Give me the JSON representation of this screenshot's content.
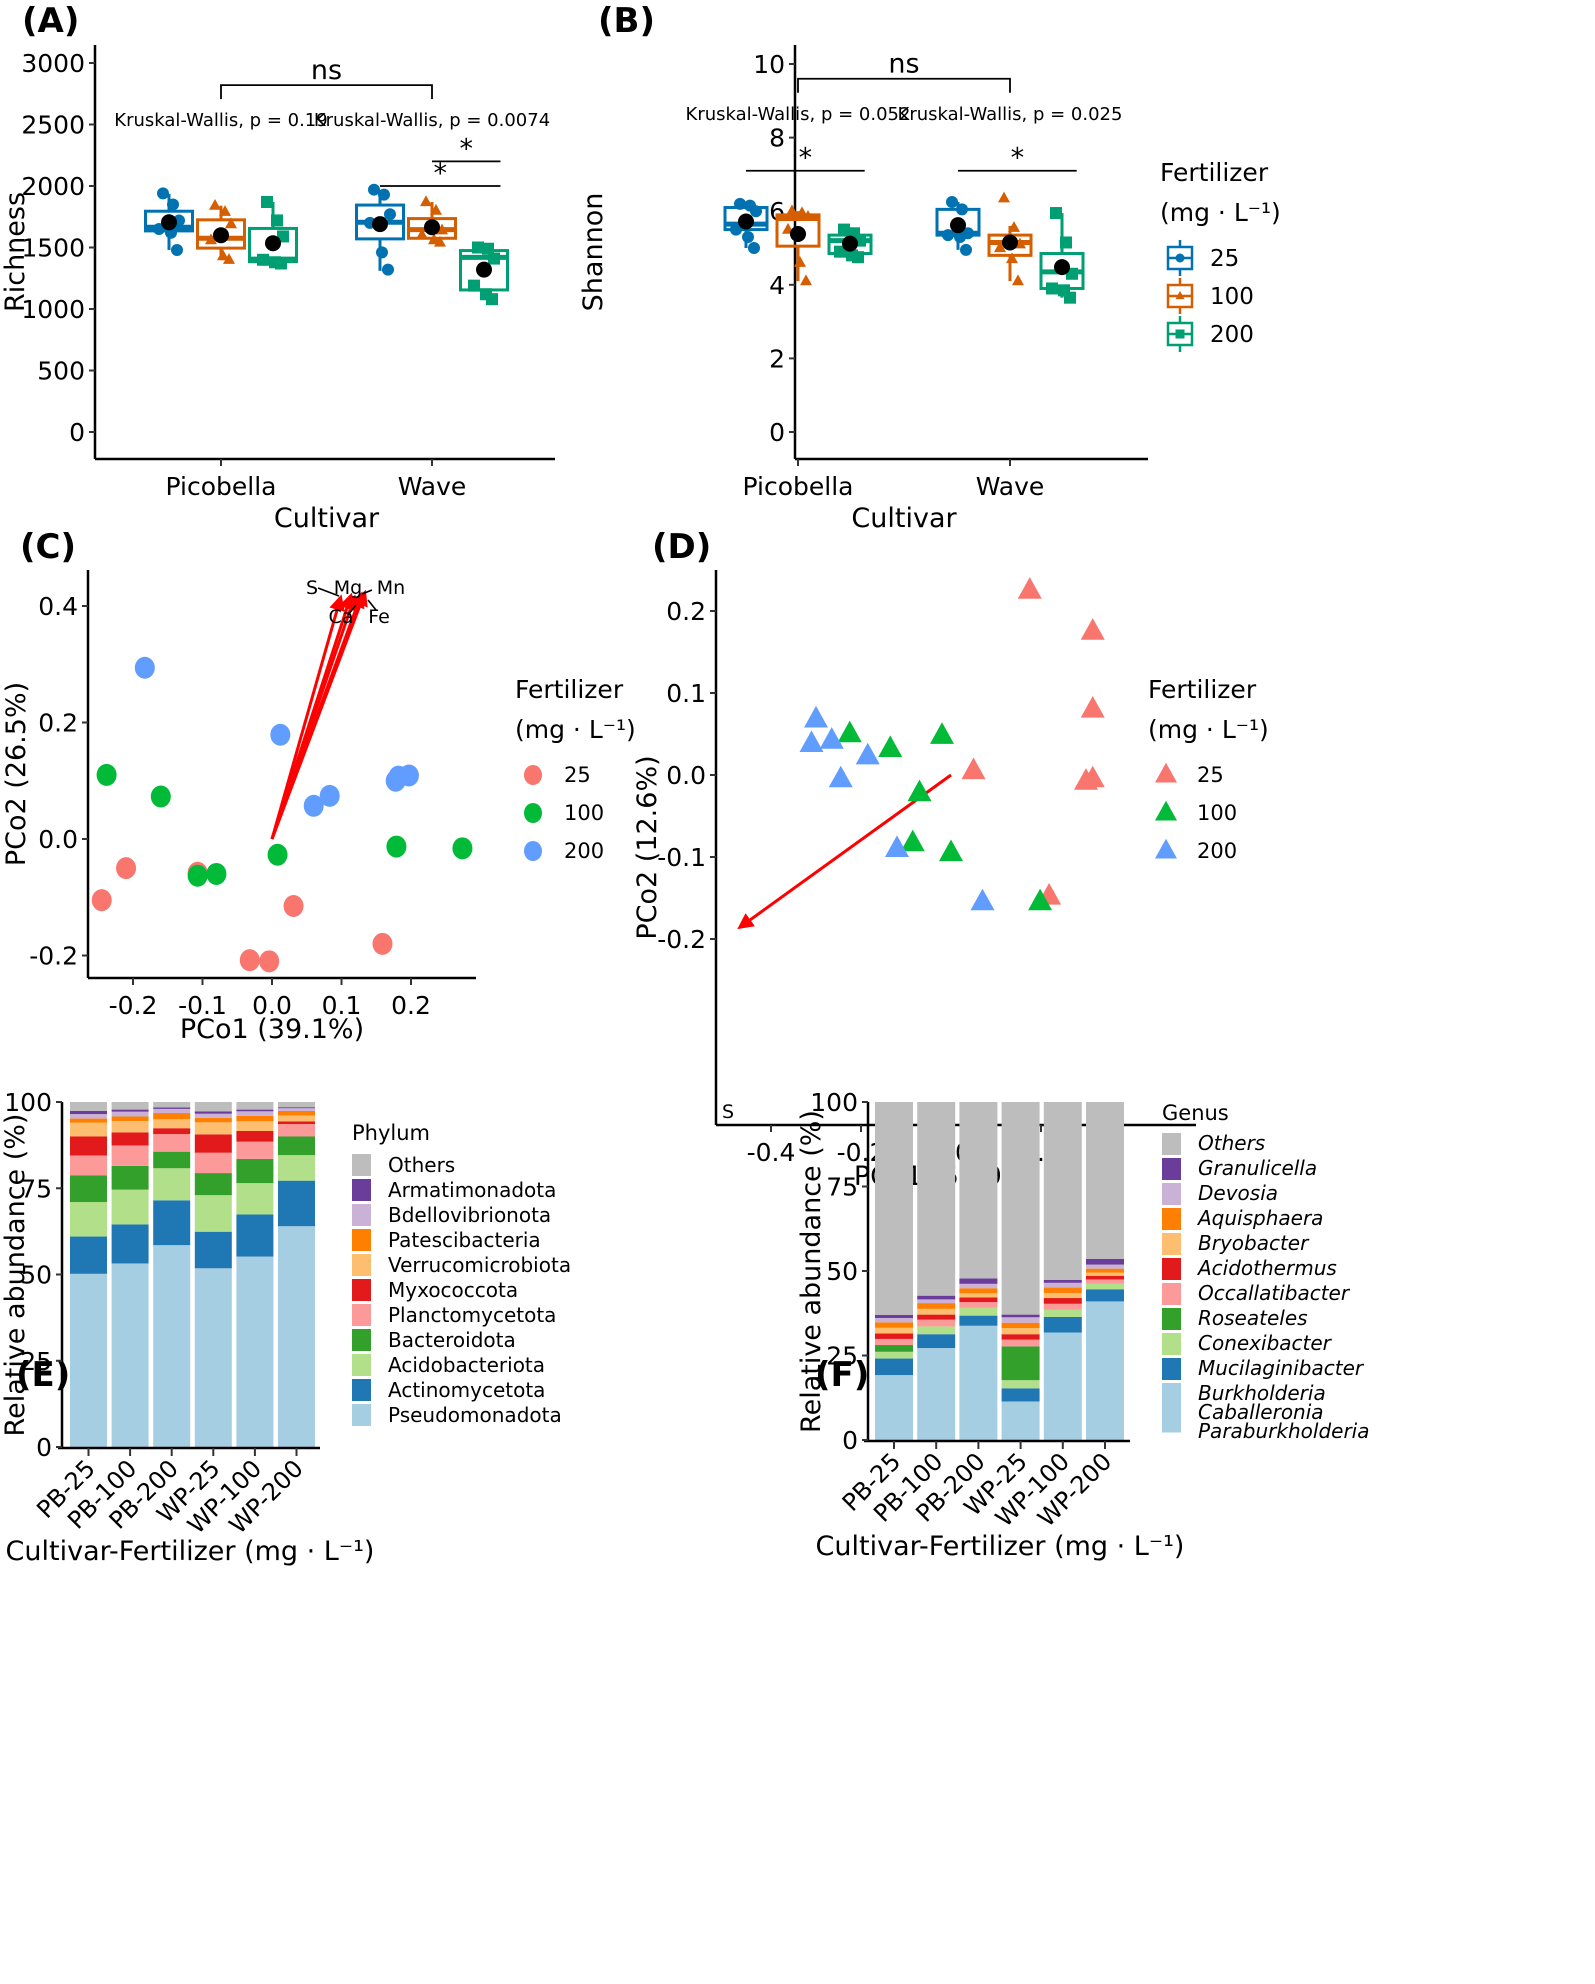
{
  "figure": {
    "panels": [
      "(A)",
      "(B)",
      "(C)",
      "(D)",
      "(E)",
      "(F)"
    ]
  },
  "chart_data": [
    {
      "id": "A",
      "type": "boxplot",
      "panel_label": "(A)",
      "xlabel": "Cultivar",
      "ylabel": "Richness",
      "categories": [
        "Picobella",
        "Wave"
      ],
      "ylim": [
        0,
        3000
      ],
      "yticks": [
        "0",
        "500",
        "1000",
        "1500",
        "2000",
        "2500",
        "3000"
      ],
      "ytick_values": [
        0,
        500,
        1000,
        1500,
        2000,
        2500,
        3000
      ],
      "annotations": {
        "kw": [
          "Kruskal-Wallis, p = 0.19",
          "Kruskal-Wallis, p = 0.0074"
        ],
        "between_cultivar": "ns",
        "pairwise": [
          {
            "group": "Wave",
            "from": "25",
            "to": "200",
            "label": "*",
            "y": 2000
          },
          {
            "group": "Wave",
            "from": "100",
            "to": "200",
            "label": "*",
            "y": 2200
          }
        ],
        "bracket_y": 2820
      },
      "series": [
        {
          "name": "25",
          "cultivar": "Picobella",
          "q1": 1635,
          "median": 1665,
          "q3": 1795,
          "whisker_low": 1480,
          "whisker_high": 1935,
          "mean": 1705,
          "points": [
            1940,
            1850,
            1720,
            1650,
            1620,
            1480
          ]
        },
        {
          "name": "100",
          "cultivar": "Picobella",
          "q1": 1495,
          "median": 1575,
          "q3": 1725,
          "whisker_low": 1400,
          "whisker_high": 1840,
          "mean": 1600,
          "points": [
            1840,
            1790,
            1690,
            1560,
            1430,
            1400
          ]
        },
        {
          "name": "200",
          "cultivar": "Picobella",
          "q1": 1385,
          "median": 1405,
          "q3": 1655,
          "whisker_low": 1370,
          "whisker_high": 1870,
          "mean": 1535,
          "points": [
            1870,
            1720,
            1590,
            1400,
            1380,
            1370
          ]
        },
        {
          "name": "25",
          "cultivar": "Wave",
          "q1": 1570,
          "median": 1705,
          "q3": 1845,
          "whisker_low": 1310,
          "whisker_high": 1960,
          "mean": 1690,
          "points": [
            1970,
            1930,
            1770,
            1700,
            1460,
            1320
          ]
        },
        {
          "name": "100",
          "cultivar": "Wave",
          "q1": 1575,
          "median": 1645,
          "q3": 1735,
          "whisker_low": 1540,
          "whisker_high": 1870,
          "mean": 1665,
          "points": [
            1870,
            1800,
            1640,
            1600,
            1560,
            1540
          ]
        },
        {
          "name": "200",
          "cultivar": "Wave",
          "q1": 1155,
          "median": 1420,
          "q3": 1475,
          "whisker_low": 1080,
          "whisker_high": 1500,
          "mean": 1320,
          "points": [
            1500,
            1490,
            1410,
            1190,
            1120,
            1080
          ]
        }
      ]
    },
    {
      "id": "B",
      "type": "boxplot",
      "panel_label": "(B)",
      "xlabel": "Cultivar",
      "ylabel": "Shannon",
      "categories": [
        "Picobella",
        "Wave"
      ],
      "ylim": [
        0,
        10
      ],
      "yticks": [
        "0",
        "2",
        "4",
        "6",
        "8",
        "10"
      ],
      "ytick_values": [
        0,
        2,
        4,
        6,
        8,
        10
      ],
      "annotations": {
        "kw": [
          "Kruskal-Wallis, p = 0.052",
          "Kruskal-Wallis, p = 0.025"
        ],
        "between_cultivar": "ns",
        "pairwise": [
          {
            "group": "Picobella",
            "from": "25",
            "to": "200",
            "label": "*",
            "y": 7.1
          },
          {
            "group": "Wave",
            "from": "25",
            "to": "200",
            "label": "*",
            "y": 7.1
          }
        ],
        "bracket_y": 9.6
      },
      "legend": {
        "title_line1": "Fertilizer",
        "title_line2": "(mg · L⁻¹)",
        "entries": [
          "25",
          "100",
          "200"
        ]
      },
      "series": [
        {
          "name": "25",
          "cultivar": "Picobella",
          "q1": 5.5,
          "median": 5.65,
          "q3": 6.1,
          "whisker_low": 5.0,
          "whisker_high": 6.2,
          "mean": 5.72,
          "points": [
            6.2,
            6.15,
            6.0,
            5.5,
            5.3,
            5.0
          ]
        },
        {
          "name": "100",
          "cultivar": "Picobella",
          "q1": 5.05,
          "median": 5.8,
          "q3": 5.9,
          "whisker_low": 4.1,
          "whisker_high": 6.0,
          "mean": 5.38,
          "points": [
            6.0,
            5.95,
            5.85,
            5.5,
            4.6,
            4.1
          ]
        },
        {
          "name": "200",
          "cultivar": "Picobella",
          "q1": 4.85,
          "median": 5.2,
          "q3": 5.35,
          "whisker_low": 4.75,
          "whisker_high": 5.5,
          "mean": 5.12,
          "points": [
            5.5,
            5.4,
            5.2,
            4.9,
            4.8,
            4.75
          ]
        },
        {
          "name": "25",
          "cultivar": "Wave",
          "q1": 5.35,
          "median": 5.4,
          "q3": 6.05,
          "whisker_low": 4.95,
          "whisker_high": 6.25,
          "mean": 5.62,
          "points": [
            6.25,
            6.05,
            5.4,
            5.35,
            5.3,
            4.95
          ]
        },
        {
          "name": "100",
          "cultivar": "Wave",
          "q1": 4.8,
          "median": 5.15,
          "q3": 5.35,
          "whisker_low": 4.1,
          "whisker_high": 5.6,
          "mean": 5.15,
          "points": [
            6.35,
            5.55,
            5.1,
            5.0,
            4.7,
            4.1
          ]
        },
        {
          "name": "200",
          "cultivar": "Wave",
          "q1": 3.9,
          "median": 4.35,
          "q3": 4.85,
          "whisker_low": 3.65,
          "whisker_high": 5.95,
          "mean": 4.48,
          "points": [
            5.95,
            5.15,
            4.3,
            3.9,
            3.85,
            3.65
          ]
        }
      ]
    },
    {
      "id": "C",
      "type": "scatter",
      "panel_label": "(C)",
      "xlabel": "PCo1 (39.1%)",
      "ylabel": "PCo2 (26.5%)",
      "xlim": [
        -0.265,
        0.295
      ],
      "ylim": [
        -0.24,
        0.455
      ],
      "xticks": [
        "-0.2",
        "-0.1",
        "0.0",
        "0.1",
        "0.2"
      ],
      "xtick_values": [
        -0.2,
        -0.1,
        0.0,
        0.1,
        0.2
      ],
      "yticks": [
        "-0.2",
        "0.0",
        "0.2",
        "0.4"
      ],
      "ytick_values": [
        -0.2,
        0.0,
        0.2,
        0.4
      ],
      "marker": "circle",
      "legend": {
        "title_line1": "Fertilizer",
        "title_line2": "(mg · L⁻¹)",
        "entries": [
          "25",
          "100",
          "200"
        ]
      },
      "series": [
        {
          "name": "25",
          "points": [
            [
              -0.245,
              -0.105
            ],
            [
              -0.21,
              -0.05
            ],
            [
              -0.107,
              -0.058
            ],
            [
              -0.032,
              -0.208
            ],
            [
              -0.004,
              -0.21
            ],
            [
              0.031,
              -0.115
            ],
            [
              0.159,
              -0.18
            ]
          ]
        },
        {
          "name": "100",
          "points": [
            [
              -0.238,
              0.11
            ],
            [
              -0.16,
              0.073
            ],
            [
              -0.107,
              -0.063
            ],
            [
              -0.08,
              -0.06
            ],
            [
              0.008,
              -0.027
            ],
            [
              0.179,
              -0.013
            ],
            [
              0.274,
              -0.016
            ]
          ]
        },
        {
          "name": "200",
          "points": [
            [
              -0.183,
              0.294
            ],
            [
              0.012,
              0.179
            ],
            [
              0.06,
              0.057
            ],
            [
              0.083,
              0.074
            ],
            [
              0.178,
              0.1
            ],
            [
              0.182,
              0.107
            ],
            [
              0.197,
              0.109
            ]
          ]
        }
      ],
      "vectors": [
        {
          "label": "S",
          "x": 0.1,
          "y": 0.42
        },
        {
          "label": "Mg",
          "x": 0.115,
          "y": 0.423
        },
        {
          "label": "Ca",
          "x": 0.12,
          "y": 0.42
        },
        {
          "label": "Mn",
          "x": 0.135,
          "y": 0.428
        },
        {
          "label": "Fe",
          "x": 0.13,
          "y": 0.425
        }
      ]
    },
    {
      "id": "D",
      "type": "scatter",
      "panel_label": "(D)",
      "xlabel": "PCo1 (59.9%)",
      "ylabel": "PCo2 (12.6%)",
      "xlim": [
        -0.525,
        0.355
      ],
      "ylim": [
        -0.245,
        0.245
      ],
      "xticks": [
        "-0.4",
        "-0.2",
        "0.0",
        "0.2"
      ],
      "xtick_values": [
        -0.4,
        -0.2,
        0.0,
        0.2
      ],
      "yticks": [
        "-0.2",
        "-0.1",
        "0.0",
        "0.1",
        "0.2"
      ],
      "ytick_values": [
        -0.2,
        -0.1,
        0.0,
        0.1,
        0.2
      ],
      "marker": "triangle",
      "legend": {
        "title_line1": "Fertilizer",
        "title_line2": "(mg · L⁻¹)",
        "entries": [
          "25",
          "100",
          "200"
        ]
      },
      "series": [
        {
          "name": "25",
          "points": [
            [
              0.175,
              0.225
            ],
            [
              0.315,
              0.175
            ],
            [
              0.315,
              0.08
            ],
            [
              0.05,
              0.005
            ],
            [
              0.3,
              -0.008
            ],
            [
              0.315,
              -0.005
            ],
            [
              0.218,
              -0.148
            ]
          ]
        },
        {
          "name": "100",
          "points": [
            [
              -0.225,
              0.05
            ],
            [
              -0.135,
              0.032
            ],
            [
              -0.02,
              0.048
            ],
            [
              -0.07,
              -0.022
            ],
            [
              -0.085,
              -0.083
            ],
            [
              0.0,
              -0.095
            ],
            [
              0.198,
              -0.155
            ]
          ]
        },
        {
          "name": "200",
          "points": [
            [
              -0.3,
              0.068
            ],
            [
              -0.31,
              0.038
            ],
            [
              -0.265,
              0.042
            ],
            [
              -0.185,
              0.023
            ],
            [
              -0.245,
              -0.005
            ],
            [
              -0.12,
              -0.09
            ],
            [
              0.07,
              -0.155
            ]
          ]
        }
      ],
      "vectors": [
        {
          "label": "S",
          "x": -0.475,
          "y": -0.188
        }
      ]
    },
    {
      "id": "E",
      "type": "bar",
      "stacked": true,
      "panel_label": "(E)",
      "xlabel": "Cultivar-Fertilizer (mg · L⁻¹)",
      "ylabel": "Relative abundance (%)",
      "ylim": [
        0,
        100
      ],
      "yticks": [
        "0",
        "25",
        "50",
        "75",
        "100"
      ],
      "ytick_values": [
        0,
        25,
        50,
        75,
        100
      ],
      "categories": [
        "PB-25",
        "PB-100",
        "PB-200",
        "WP-25",
        "WP-100",
        "WP-200"
      ],
      "legend_title": "Phylum",
      "series": [
        {
          "name": "Pseudomonadota",
          "color": "#a6cee3",
          "values": [
            50.2,
            53.2,
            58.5,
            51.8,
            55.2,
            64.0
          ]
        },
        {
          "name": "Actinomycetota",
          "color": "#1f78b4",
          "values": [
            10.8,
            11.3,
            13.0,
            10.6,
            12.2,
            13.2
          ]
        },
        {
          "name": "Acidobacteriota",
          "color": "#b2df8a",
          "values": [
            10.0,
            10.1,
            9.3,
            10.6,
            9.1,
            7.4
          ]
        },
        {
          "name": "Bacteroidota",
          "color": "#33a02c",
          "values": [
            7.7,
            6.9,
            4.8,
            6.4,
            7.0,
            5.4
          ]
        },
        {
          "name": "Planctomycetota",
          "color": "#fb9a99",
          "values": [
            5.8,
            5.9,
            5.1,
            5.9,
            5.0,
            3.6
          ]
        },
        {
          "name": "Myxococcota",
          "color": "#e31a1c",
          "values": [
            5.5,
            3.8,
            1.7,
            5.3,
            3.1,
            0.8
          ]
        },
        {
          "name": "Verrucomicrobiota",
          "color": "#fdbf6f",
          "values": [
            4.0,
            3.3,
            2.6,
            3.5,
            2.8,
            1.7
          ]
        },
        {
          "name": "Patescibacteria",
          "color": "#ff7f00",
          "values": [
            1.2,
            1.3,
            1.8,
            1.3,
            1.6,
            1.3
          ]
        },
        {
          "name": "Bdellovibrionota",
          "color": "#cab2d6",
          "values": [
            1.3,
            1.4,
            1.2,
            1.2,
            1.3,
            0.8
          ]
        },
        {
          "name": "Armatimonadota",
          "color": "#6a3d9a",
          "values": [
            0.9,
            0.6,
            0.4,
            0.7,
            0.5,
            0.3
          ]
        },
        {
          "name": "Others",
          "color": "#bdbdbd",
          "values": [
            2.6,
            2.2,
            1.6,
            2.7,
            2.2,
            1.5
          ]
        }
      ]
    },
    {
      "id": "F",
      "type": "bar",
      "stacked": true,
      "panel_label": "(F)",
      "xlabel": "Cultivar-Fertilizer (mg · L⁻¹)",
      "ylabel": "Relative abundance (%)",
      "ylim": [
        0,
        100
      ],
      "yticks": [
        "0",
        "25",
        "50",
        "75",
        "100"
      ],
      "ytick_values": [
        0,
        25,
        50,
        75,
        100
      ],
      "categories": [
        "PB-25",
        "PB-100",
        "PB-200",
        "WP-25",
        "WP-100",
        "WP-200"
      ],
      "legend_title": "Genus",
      "series": [
        {
          "name": "Burkholderia Caballeronia Paraburkholderia",
          "label_lines": [
            "Burkholderia",
            "Caballeronia",
            "Paraburkholderia"
          ],
          "color": "#a6cee3",
          "values": [
            19.2,
            27.2,
            33.8,
            11.4,
            31.8,
            41.0
          ]
        },
        {
          "name": "Mucilaginibacter",
          "label_lines": [
            "Mucilaginibacter"
          ],
          "color": "#1f78b4",
          "values": [
            4.9,
            4.1,
            3.0,
            3.9,
            4.6,
            3.6
          ]
        },
        {
          "name": "Conexibacter",
          "label_lines": [
            "Conexibacter"
          ],
          "color": "#b2df8a",
          "values": [
            2.0,
            2.3,
            2.3,
            2.4,
            2.1,
            1.6
          ]
        },
        {
          "name": "Roseateles",
          "label_lines": [
            "Roseateles"
          ],
          "color": "#33a02c",
          "values": [
            2.0,
            0.0,
            0.0,
            10.0,
            0.0,
            0.0
          ]
        },
        {
          "name": "Occallatibacter",
          "label_lines": [
            "Occallatibacter"
          ],
          "color": "#fb9a99",
          "values": [
            1.8,
            2.0,
            1.7,
            2.0,
            1.8,
            1.3
          ]
        },
        {
          "name": "Acidothermus",
          "label_lines": [
            "Acidothermus"
          ],
          "color": "#e31a1c",
          "values": [
            1.6,
            1.5,
            1.4,
            1.6,
            1.7,
            1.1
          ]
        },
        {
          "name": "Bryobacter",
          "label_lines": [
            "Bryobacter"
          ],
          "color": "#fdbf6f",
          "values": [
            1.7,
            1.7,
            1.2,
            1.8,
            1.5,
            0.9
          ]
        },
        {
          "name": "Aquisphaera",
          "label_lines": [
            "Aquisphaera"
          ],
          "color": "#ff7f00",
          "values": [
            1.6,
            1.7,
            1.5,
            1.6,
            1.6,
            1.2
          ]
        },
        {
          "name": "Devosia",
          "label_lines": [
            "Devosia"
          ],
          "color": "#cab2d6",
          "values": [
            1.3,
            1.1,
            1.3,
            1.6,
            1.4,
            1.2
          ]
        },
        {
          "name": "Granulicella",
          "label_lines": [
            "Granulicella"
          ],
          "color": "#6a3d9a",
          "values": [
            0.9,
            1.1,
            1.6,
            0.8,
            0.9,
            1.7
          ]
        },
        {
          "name": "Others",
          "label_lines": [
            "Others"
          ],
          "color": "#bdbdbd",
          "values": [
            63.0,
            57.3,
            52.2,
            62.9,
            52.6,
            46.4
          ]
        }
      ]
    }
  ],
  "colors": {
    "box_25": "#0072b2",
    "box_100": "#d55e00",
    "box_200": "#009e73",
    "pcoa_25": "#f8766d",
    "pcoa_100": "#00ba38",
    "pcoa_200": "#619cff",
    "vector": "#ff0000",
    "mean": "#000000"
  }
}
